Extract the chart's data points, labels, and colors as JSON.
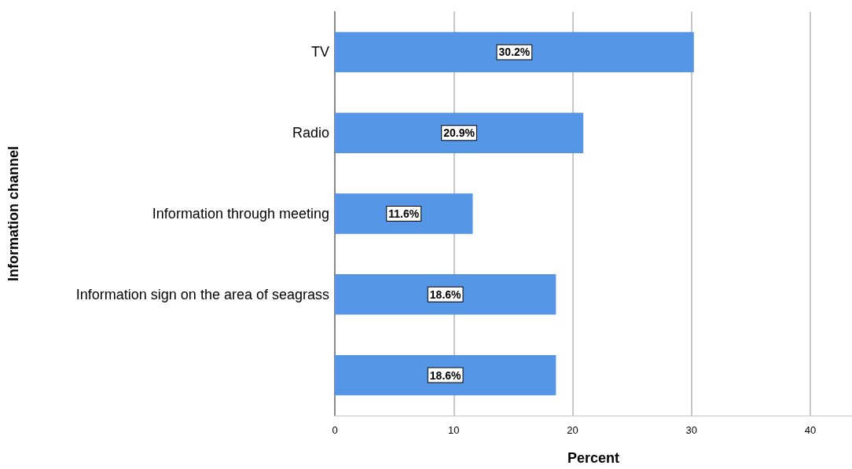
{
  "chart_data": {
    "type": "bar",
    "orientation": "horizontal",
    "categories": [
      "TV",
      "Radio",
      "Information through meeting",
      "Information sign on the area of seagrass",
      null
    ],
    "values": [
      30.2,
      20.9,
      11.6,
      18.6,
      18.6
    ],
    "value_labels": [
      "30.2%",
      "20.9%",
      "11.6%",
      "18.6%",
      "18.6%"
    ],
    "color": "#5596e6",
    "xlabel": "Percent",
    "ylabel": "Information channel",
    "xlim": [
      0,
      43.5
    ],
    "xticks": [
      0,
      10,
      20,
      30,
      40
    ],
    "grid": "x"
  }
}
